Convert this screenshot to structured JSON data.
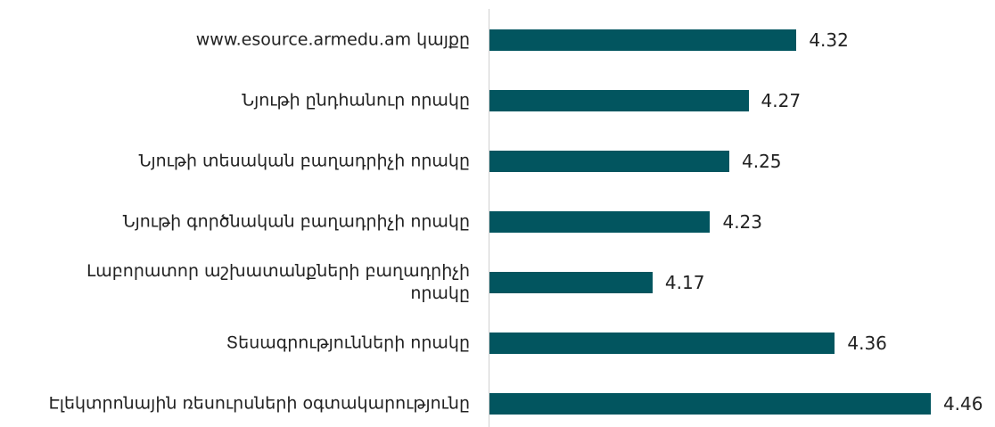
{
  "chart_data": {
    "type": "barh",
    "categories": [
      "www.esource.armedu.am կայքը",
      "Նյութի ընդհանուր որակը",
      "Նյութի տեսական բաղադրիչի որակը",
      "Նյութի գործնական բաղադրիչի որակը",
      "Լաբորատոր աշխատանքների բաղադրիչի\nորակը",
      "Տեսագրությունների որակը",
      "Էլեկտրոնային ռեսուրսների օգտակարությունը"
    ],
    "values": [
      4.32,
      4.27,
      4.25,
      4.23,
      4.17,
      4.36,
      4.46
    ],
    "color": "#02555f",
    "xlim": [
      4,
      4.5
    ]
  }
}
